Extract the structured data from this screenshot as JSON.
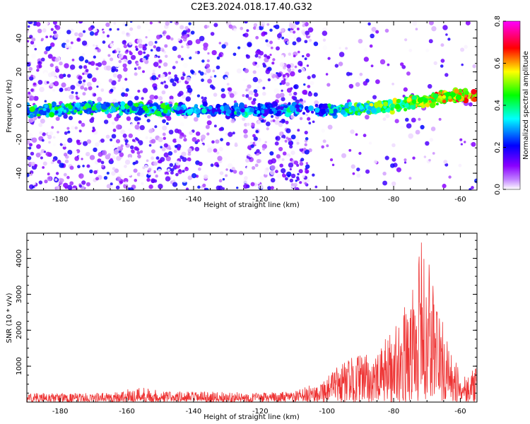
{
  "figure": {
    "title": "C2E3.2024.018.17.40.G32"
  },
  "chart_data": [
    {
      "type": "heatmap",
      "title": "C2E3.2024.018.17.40.G32",
      "xlabel": "Height of straight line (km)",
      "ylabel": "Frequency (Hz)",
      "xlim": [
        -190,
        -55
      ],
      "ylim": [
        -50,
        50
      ],
      "xticks": [
        -180,
        -160,
        -140,
        -120,
        -100,
        -80,
        -60
      ],
      "yticks": [
        -40,
        -20,
        0,
        20,
        40
      ],
      "colorbar": {
        "label": "Normalized spectral amplitude",
        "range": [
          0.0,
          0.8
        ],
        "ticks": [
          "0.0",
          "0.2",
          "0.4",
          "0.6",
          "0.8"
        ],
        "colormap": [
          "#ffffff",
          "#8a00ff",
          "#0000ff",
          "#00ffff",
          "#00ff00",
          "#ffff00",
          "#ff0000",
          "#ff00ff"
        ]
      },
      "ridge": [
        {
          "x": -190,
          "y": -3
        },
        {
          "x": -170,
          "y": -1
        },
        {
          "x": -150,
          "y": -2
        },
        {
          "x": -130,
          "y": -3
        },
        {
          "x": -110,
          "y": -2
        },
        {
          "x": -100,
          "y": -3
        },
        {
          "x": -90,
          "y": -2
        },
        {
          "x": -80,
          "y": 0
        },
        {
          "x": -70,
          "y": 3
        },
        {
          "x": -60,
          "y": 6
        },
        {
          "x": -55,
          "y": 6
        }
      ],
      "grid": false
    },
    {
      "type": "line",
      "xlabel": "Height of straight line (km)",
      "ylabel": "SNR (10 * v/v)",
      "xlim": [
        -190,
        -55
      ],
      "ylim": [
        0,
        4700
      ],
      "xticks": [
        -180,
        -160,
        -140,
        -120,
        -100,
        -80,
        -60
      ],
      "yticks": [
        1000,
        2000,
        3000,
        4000
      ],
      "color": "#ee3333",
      "envelope": [
        {
          "x": -190,
          "y": 250
        },
        {
          "x": -175,
          "y": 230
        },
        {
          "x": -165,
          "y": 260
        },
        {
          "x": -155,
          "y": 420
        },
        {
          "x": -150,
          "y": 300
        },
        {
          "x": -140,
          "y": 280
        },
        {
          "x": -130,
          "y": 270
        },
        {
          "x": -120,
          "y": 250
        },
        {
          "x": -110,
          "y": 280
        },
        {
          "x": -105,
          "y": 450
        },
        {
          "x": -100,
          "y": 700
        },
        {
          "x": -95,
          "y": 1100
        },
        {
          "x": -90,
          "y": 1300
        },
        {
          "x": -85,
          "y": 1200
        },
        {
          "x": -82,
          "y": 1800
        },
        {
          "x": -78,
          "y": 2300
        },
        {
          "x": -75,
          "y": 2800
        },
        {
          "x": -72,
          "y": 4300
        },
        {
          "x": -70,
          "y": 4000
        },
        {
          "x": -68,
          "y": 3500
        },
        {
          "x": -65,
          "y": 2000
        },
        {
          "x": -62,
          "y": 1100
        },
        {
          "x": -58,
          "y": 800
        },
        {
          "x": -55,
          "y": 900
        }
      ],
      "grid": false
    }
  ]
}
